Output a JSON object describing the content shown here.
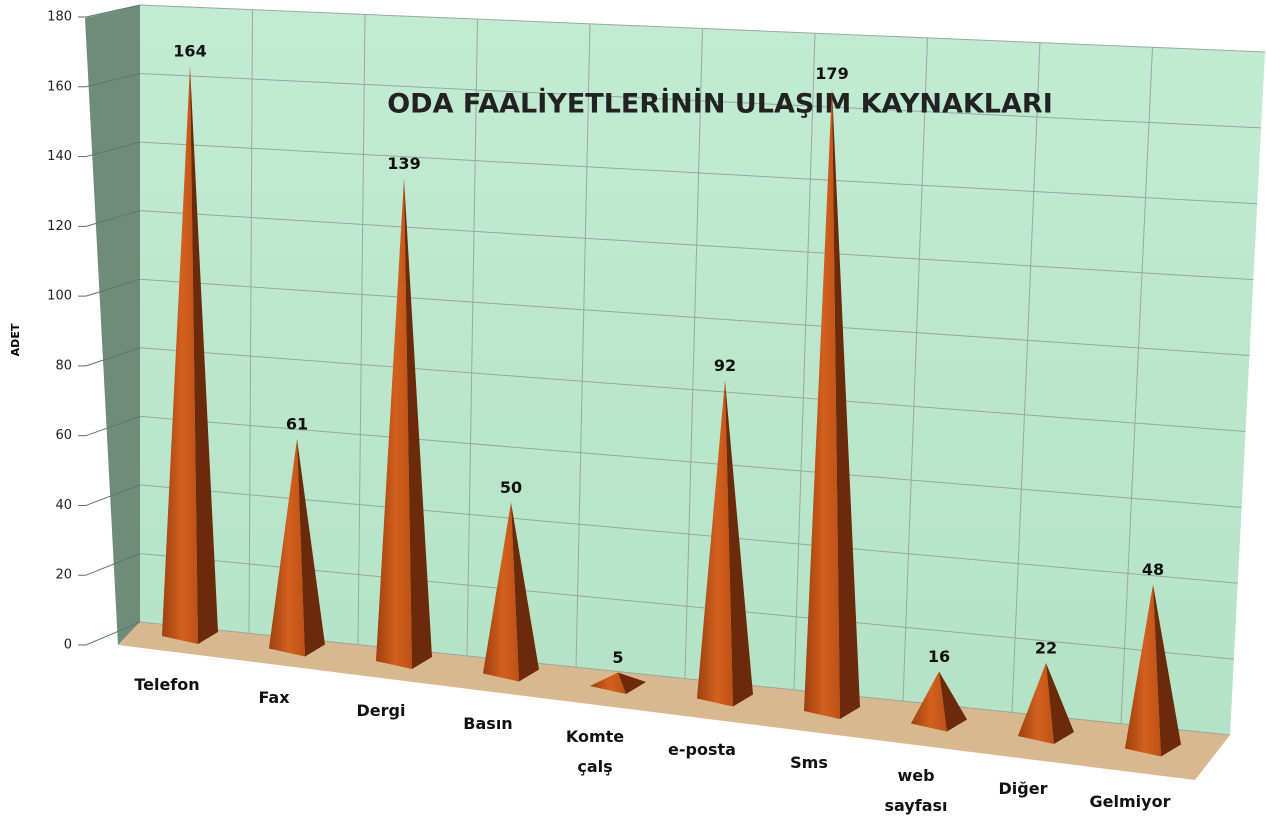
{
  "chart_data": {
    "type": "pyramid3d",
    "title": "ODA FAALİYETLERİNİN ULAŞIM KAYNAKLARI",
    "y_label": "ADET",
    "categories": [
      "Telefon",
      "Fax",
      "Dergi",
      "Basın",
      "Komte çalş",
      "e-posta",
      "Sms",
      "web sayfası",
      "Diğer",
      "Gelmiyor"
    ],
    "values": [
      164,
      61,
      139,
      50,
      5,
      92,
      179,
      16,
      22,
      48
    ],
    "color": "#c65a1e",
    "ylim": [
      0,
      180
    ],
    "yticks": [
      0,
      20,
      40,
      60,
      80,
      100,
      120,
      140,
      160,
      180
    ],
    "grid": true
  }
}
